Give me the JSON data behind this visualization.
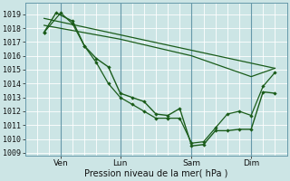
{
  "background_color": "#cce5e5",
  "grid_color_major": "#aacccc",
  "grid_color_minor": "#bbdddd",
  "line_color": "#1a5c1a",
  "xlabel": "Pression niveau de la mer( hPa )",
  "yticks": [
    1009,
    1010,
    1011,
    1012,
    1013,
    1014,
    1015,
    1016,
    1017,
    1018,
    1019
  ],
  "ylim": [
    1008.8,
    1019.8
  ],
  "xlim": [
    -0.5,
    10.5
  ],
  "xtick_labels": [
    "Ven",
    "Lun",
    "Sam",
    "Dim"
  ],
  "xtick_positions": [
    1.0,
    3.5,
    6.5,
    9.0
  ],
  "vline_positions": [
    1.0,
    3.5,
    6.5,
    9.0
  ],
  "line1_x": [
    0.3,
    0.8,
    1.5,
    2.0,
    2.5,
    3.0,
    3.5,
    4.0,
    4.5,
    5.0,
    5.5,
    6.0,
    6.5,
    7.0,
    7.5,
    8.0,
    8.5,
    9.0,
    9.5,
    10.0
  ],
  "line1_y": [
    1017.7,
    1019.1,
    1018.5,
    1016.7,
    1015.8,
    1015.2,
    1013.3,
    1013.0,
    1012.7,
    1011.8,
    1011.7,
    1012.2,
    1009.5,
    1009.6,
    1010.6,
    1010.6,
    1010.7,
    1010.7,
    1013.4,
    1013.3
  ],
  "line2_x": [
    0.3,
    1.0,
    1.5,
    2.0,
    2.5,
    3.0,
    3.5,
    4.0,
    4.5,
    5.0,
    5.5,
    6.0,
    6.5,
    7.0,
    7.5,
    8.0,
    8.5,
    9.0,
    9.5,
    10.0
  ],
  "line2_y": [
    1017.7,
    1019.1,
    1018.3,
    1016.7,
    1015.5,
    1014.0,
    1013.0,
    1012.5,
    1012.0,
    1011.5,
    1011.5,
    1011.5,
    1009.7,
    1009.8,
    1010.8,
    1011.8,
    1012.0,
    1011.7,
    1013.8,
    1014.8
  ],
  "line3_x": [
    0.3,
    10.0
  ],
  "line3_y": [
    1018.7,
    1015.1
  ],
  "line4_x": [
    0.3,
    3.5,
    6.5,
    9.0,
    10.0
  ],
  "line4_y": [
    1018.2,
    1017.2,
    1016.0,
    1014.5,
    1015.1
  ]
}
